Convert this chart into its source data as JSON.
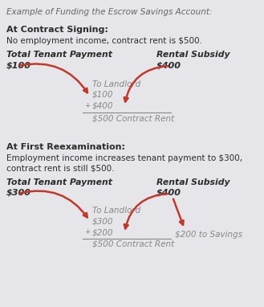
{
  "bg_color": "#e5e5ea",
  "title": "Example of Funding the Escrow Savings Account:",
  "title_color": "#666666",
  "title_fontsize": 7.5,
  "section1_header": "At Contract Signing:",
  "section1_desc": "No employment income, contract rent is $500.",
  "section1_left_label": "Total Tenant Payment",
  "section1_left_value": "$100",
  "section1_right_label": "Rental Subsidy",
  "section1_right_value": "$400",
  "section1_landlord_label": "To Landlord",
  "section1_calc_line1": "$100",
  "section1_calc_plus": "+",
  "section1_calc_line2": "$400",
  "section1_calc_total": "$500 Contract Rent",
  "section2_header": "At First Reexamination:",
  "section2_desc1": "Employment income increases tenant payment to $300,",
  "section2_desc2": "contract rent is still $500.",
  "section2_left_label": "Total Tenant Payment",
  "section2_left_value": "$300",
  "section2_right_label": "Rental Subsidy",
  "section2_right_value": "$400",
  "section2_landlord_label": "To Landlord",
  "section2_calc_line1": "$300",
  "section2_calc_plus": "+",
  "section2_calc_line2": "$200",
  "section2_calc_total": "$500 Contract Rent",
  "section2_savings": "$200 to Savings",
  "arrow_color": "#c0392b",
  "text_dark": "#2c2c2c",
  "text_calc": "#888888",
  "header_fontsize": 8,
  "body_fontsize": 7.5,
  "label_fontsize": 7.8,
  "value_fontsize": 8,
  "calc_fontsize": 7.5
}
